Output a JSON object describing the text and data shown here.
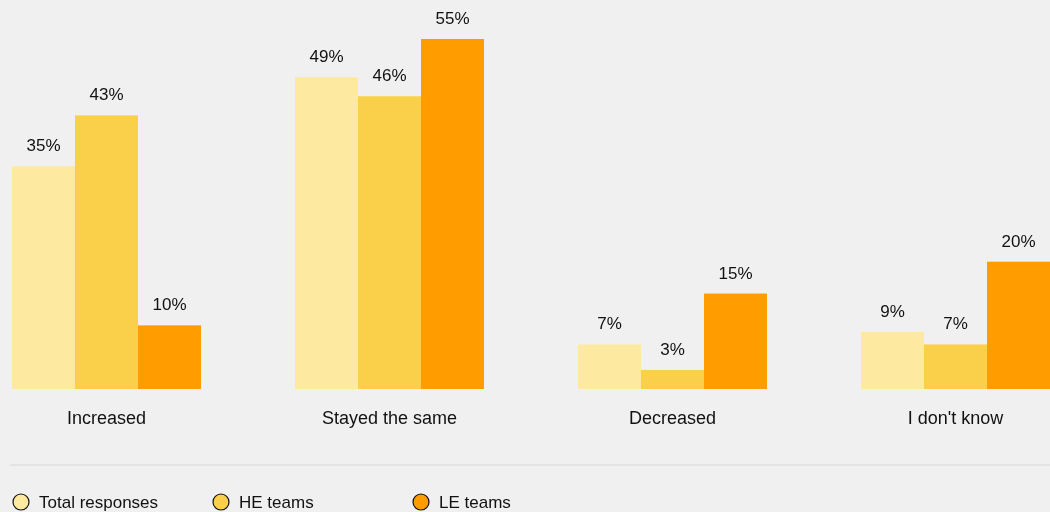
{
  "chart_data": {
    "type": "bar",
    "categories": [
      "Increased",
      "Stayed the same",
      "Decreased",
      "I don't know"
    ],
    "series": [
      {
        "name": "Total responses",
        "color": "#fdeaa0",
        "values": [
          35,
          49,
          7,
          9
        ],
        "value_labels": [
          "35%",
          "49%",
          "7%",
          "9%"
        ]
      },
      {
        "name": "HE teams",
        "color": "#fad04a",
        "values": [
          43,
          46,
          3,
          7
        ],
        "value_labels": [
          "43%",
          "46%",
          "3%",
          "7%"
        ]
      },
      {
        "name": "LE teams",
        "color": "#ff9d00",
        "values": [
          10,
          55,
          15,
          20
        ],
        "value_labels": [
          "10%",
          "55%",
          "15%",
          "20%"
        ]
      }
    ],
    "legend": "bottom left"
  }
}
